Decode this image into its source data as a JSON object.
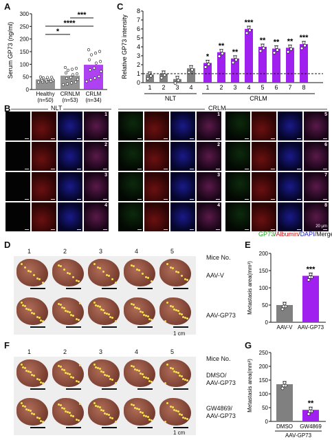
{
  "panel_letters": [
    "A",
    "B",
    "C",
    "D",
    "E",
    "F",
    "G"
  ],
  "chart_data": [
    {
      "panel": "A",
      "type": "bar",
      "ylabel": "Serum GP73 (ng/ml)",
      "ylim": [
        0,
        300
      ],
      "yticks": [
        "0",
        "50",
        "100",
        "150",
        "200",
        "250",
        "300"
      ],
      "categories": [
        "Healthy",
        "CRNLM",
        "CRLM"
      ],
      "n_labels": [
        "(n=50)",
        "(n=53)",
        "(n=34)"
      ],
      "values": [
        40,
        55,
        98
      ],
      "colors": [
        "#808080",
        "#808080",
        "#a020f0"
      ],
      "significance": [
        "*",
        "****",
        "***"
      ]
    },
    {
      "panel": "C",
      "type": "bar",
      "ylabel": "Relative GP73 intensity",
      "ylim": [
        0,
        8
      ],
      "yticks": [
        "0",
        "1",
        "2",
        "3",
        "4",
        "5",
        "6",
        "7",
        "8"
      ],
      "categories": [
        "1",
        "2",
        "3",
        "4",
        "1",
        "2",
        "3",
        "4",
        "5",
        "6",
        "7",
        "8"
      ],
      "groups": [
        "NLT",
        "CRLM"
      ],
      "values": [
        0.9,
        1.0,
        0.4,
        1.6,
        2.2,
        3.4,
        2.7,
        6.0,
        4.0,
        3.8,
        3.9,
        4.3
      ],
      "colors": [
        "#808080",
        "#a020f0"
      ],
      "significance": [
        "",
        "",
        "",
        "",
        "*",
        "**",
        "**",
        "***",
        "**",
        "**",
        "**",
        "***"
      ],
      "reference_line": 1
    },
    {
      "panel": "E",
      "type": "bar",
      "ylabel": "Metastasis area(mm²)",
      "ylim": [
        0,
        200
      ],
      "yticks": [
        "0",
        "50",
        "100",
        "150",
        "200"
      ],
      "categories": [
        "AAV-V",
        "AAV-GP73"
      ],
      "values": [
        50,
        135
      ],
      "colors": [
        "#808080",
        "#a020f0"
      ],
      "significance": [
        "",
        "***"
      ]
    },
    {
      "panel": "G",
      "type": "bar",
      "ylabel": "Metastasis area(mm²)",
      "ylim": [
        0,
        250
      ],
      "yticks": [
        "0",
        "50",
        "100",
        "150",
        "200",
        "250"
      ],
      "categories": [
        "DMSO",
        "GW4869"
      ],
      "group_label": "AAV-GP73",
      "values": [
        135,
        42
      ],
      "colors": [
        "#808080",
        "#a020f0"
      ],
      "significance": [
        "",
        "**"
      ]
    }
  ],
  "panelB": {
    "group_nlt": "NLT",
    "group_crlm": "CRLM",
    "row_numbers": [
      "1",
      "2",
      "3",
      "4"
    ],
    "row_numbers_right": [
      "5",
      "6",
      "7",
      "8"
    ],
    "scale": "20 μm",
    "legend": [
      "GP73",
      "/",
      "Albumin",
      "/",
      "DAPI",
      "/Merge"
    ]
  },
  "panelD": {
    "mice_numbers": [
      "1",
      "2",
      "3",
      "4",
      "5"
    ],
    "mice_label": "Mice No.",
    "row1_label": "AAV-V",
    "row2_label": "AAV-GP73",
    "scale": "1 cm"
  },
  "panelF": {
    "mice_numbers": [
      "1",
      "2",
      "3",
      "4",
      "5"
    ],
    "mice_label": "Mice No.",
    "row1_label": "DMSO/\nAAV-GP73",
    "row1_a": "DMSO/",
    "row1_b": "AAV-GP73",
    "row2_a": "GW4869/",
    "row2_b": "AAV-GP73",
    "scale": "1 cm"
  }
}
